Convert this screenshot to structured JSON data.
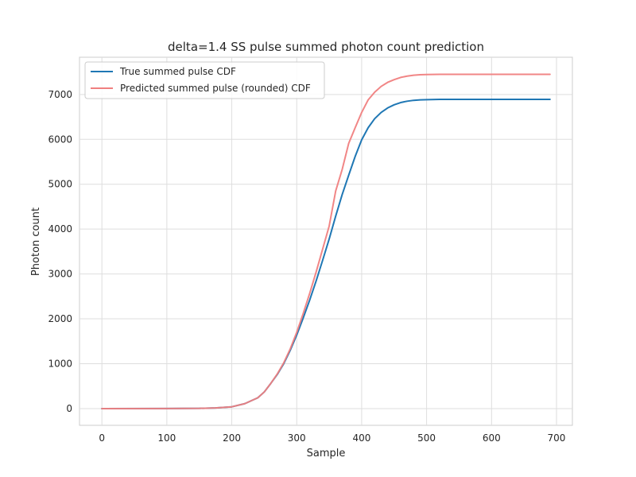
{
  "chart_data": {
    "type": "line",
    "title": "delta=1.4 SS pulse summed photon count prediction",
    "xlabel": "Sample",
    "ylabel": "Photon count",
    "xlim": [
      -34.5,
      724.5
    ],
    "ylim": [
      -373,
      7830
    ],
    "xticks": [
      0,
      100,
      200,
      300,
      400,
      500,
      600,
      700
    ],
    "yticks": [
      0,
      1000,
      2000,
      3000,
      4000,
      5000,
      6000,
      7000
    ],
    "grid": true,
    "legend_position": "upper-left",
    "series": [
      {
        "name": "True summed pulse CDF",
        "color": "#1f77b4",
        "x": [
          0,
          100,
          150,
          175,
          200,
          220,
          240,
          250,
          260,
          270,
          280,
          290,
          300,
          310,
          320,
          330,
          340,
          350,
          360,
          370,
          380,
          390,
          400,
          410,
          420,
          430,
          440,
          450,
          460,
          470,
          480,
          490,
          500,
          520,
          550,
          600,
          650,
          690
        ],
        "y": [
          0,
          2,
          5,
          15,
          40,
          110,
          240,
          370,
          560,
          760,
          1000,
          1300,
          1640,
          2020,
          2420,
          2850,
          3310,
          3780,
          4290,
          4770,
          5200,
          5620,
          5990,
          6260,
          6460,
          6600,
          6700,
          6770,
          6820,
          6850,
          6870,
          6880,
          6885,
          6890,
          6890,
          6890,
          6890,
          6890
        ]
      },
      {
        "name": "Predicted summed pulse (rounded) CDF",
        "color": "#f08080",
        "x": [
          0,
          100,
          150,
          175,
          200,
          220,
          240,
          250,
          260,
          270,
          280,
          290,
          300,
          310,
          320,
          330,
          340,
          350,
          360,
          370,
          380,
          390,
          400,
          410,
          420,
          430,
          440,
          450,
          460,
          470,
          480,
          490,
          500,
          520,
          550,
          600,
          650,
          690
        ],
        "y": [
          0,
          2,
          5,
          15,
          40,
          110,
          240,
          370,
          560,
          770,
          1020,
          1330,
          1700,
          2120,
          2570,
          3050,
          3560,
          4070,
          4850,
          5330,
          5910,
          6260,
          6600,
          6880,
          7050,
          7180,
          7270,
          7330,
          7380,
          7410,
          7430,
          7440,
          7445,
          7450,
          7450,
          7450,
          7450,
          7450
        ]
      }
    ]
  }
}
